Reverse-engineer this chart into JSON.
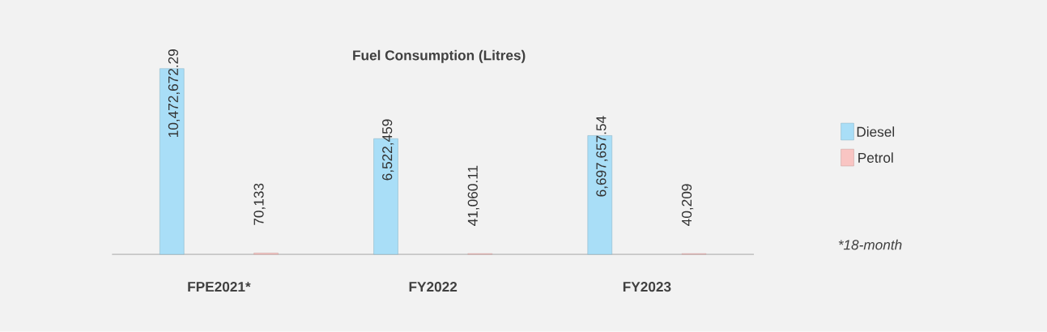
{
  "chart_data": {
    "type": "bar",
    "title": "Fuel Consumption (Litres)",
    "categories": [
      "FPE2021*",
      "FY2022",
      "FY2023"
    ],
    "series": [
      {
        "name": "Diesel",
        "color": "#a9def7",
        "values": [
          10472672.29,
          6522459,
          6697657.54
        ],
        "value_labels": [
          "10,472,672.29",
          "6,522,459",
          "6,697,657.54"
        ]
      },
      {
        "name": "Petrol",
        "color": "#f9c5c3",
        "values": [
          70133,
          41060.11,
          40209
        ],
        "value_labels": [
          "70,133",
          "41,060.11",
          "40,209"
        ]
      }
    ],
    "legend": "right",
    "annotations": [
      "*18-month"
    ]
  }
}
